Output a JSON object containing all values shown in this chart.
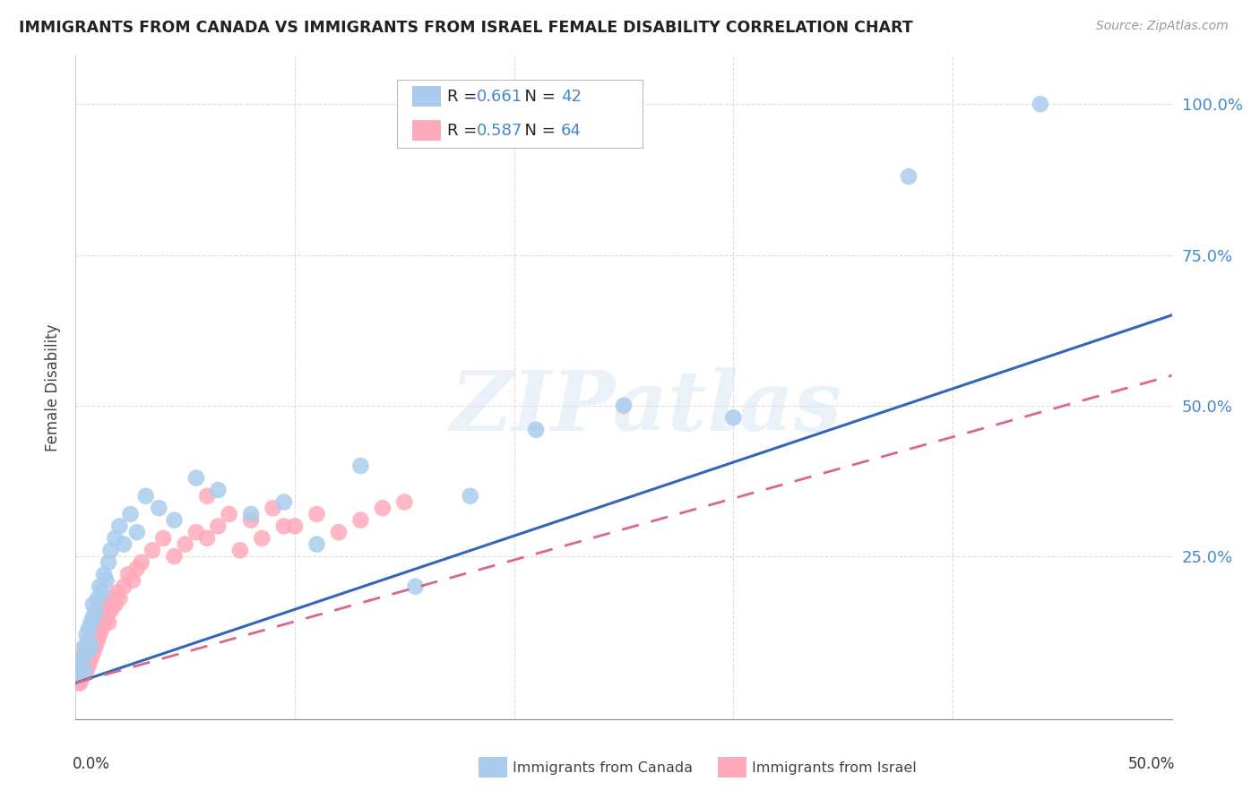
{
  "title": "IMMIGRANTS FROM CANADA VS IMMIGRANTS FROM ISRAEL FEMALE DISABILITY CORRELATION CHART",
  "source": "Source: ZipAtlas.com",
  "ylabel": "Female Disability",
  "canada_R": 0.661,
  "canada_N": 42,
  "israel_R": 0.587,
  "israel_N": 64,
  "xlim": [
    0,
    0.5
  ],
  "ylim": [
    -0.02,
    1.08
  ],
  "canada_color": "#aaccee",
  "canada_line_color": "#3366bb",
  "israel_color": "#ffaabb",
  "israel_line_color": "#dd6688",
  "background_color": "#ffffff",
  "watermark_text": "ZIPatlas",
  "canada_x": [
    0.001,
    0.002,
    0.003,
    0.004,
    0.004,
    0.005,
    0.005,
    0.006,
    0.006,
    0.007,
    0.007,
    0.008,
    0.008,
    0.009,
    0.01,
    0.011,
    0.012,
    0.013,
    0.014,
    0.015,
    0.016,
    0.018,
    0.02,
    0.022,
    0.025,
    0.028,
    0.032,
    0.038,
    0.045,
    0.055,
    0.065,
    0.08,
    0.095,
    0.11,
    0.13,
    0.155,
    0.18,
    0.21,
    0.25,
    0.3,
    0.38,
    0.44
  ],
  "canada_y": [
    0.05,
    0.07,
    0.08,
    0.1,
    0.06,
    0.09,
    0.12,
    0.11,
    0.13,
    0.14,
    0.1,
    0.15,
    0.17,
    0.16,
    0.18,
    0.2,
    0.19,
    0.22,
    0.21,
    0.24,
    0.26,
    0.28,
    0.3,
    0.27,
    0.32,
    0.29,
    0.35,
    0.33,
    0.31,
    0.38,
    0.36,
    0.32,
    0.34,
    0.27,
    0.4,
    0.2,
    0.35,
    0.46,
    0.5,
    0.48,
    0.88,
    1.0
  ],
  "israel_x": [
    0.001,
    0.001,
    0.002,
    0.002,
    0.002,
    0.003,
    0.003,
    0.003,
    0.004,
    0.004,
    0.004,
    0.005,
    0.005,
    0.005,
    0.006,
    0.006,
    0.006,
    0.007,
    0.007,
    0.008,
    0.008,
    0.008,
    0.009,
    0.009,
    0.01,
    0.01,
    0.011,
    0.012,
    0.012,
    0.013,
    0.013,
    0.014,
    0.015,
    0.015,
    0.016,
    0.017,
    0.018,
    0.019,
    0.02,
    0.022,
    0.024,
    0.026,
    0.028,
    0.03,
    0.035,
    0.04,
    0.045,
    0.05,
    0.055,
    0.06,
    0.065,
    0.07,
    0.08,
    0.09,
    0.1,
    0.11,
    0.12,
    0.13,
    0.14,
    0.15,
    0.06,
    0.075,
    0.085,
    0.095
  ],
  "israel_y": [
    0.04,
    0.05,
    0.04,
    0.06,
    0.07,
    0.05,
    0.06,
    0.08,
    0.06,
    0.07,
    0.09,
    0.06,
    0.08,
    0.1,
    0.07,
    0.09,
    0.11,
    0.08,
    0.1,
    0.09,
    0.11,
    0.12,
    0.1,
    0.12,
    0.11,
    0.13,
    0.12,
    0.13,
    0.15,
    0.14,
    0.16,
    0.15,
    0.14,
    0.17,
    0.16,
    0.18,
    0.17,
    0.19,
    0.18,
    0.2,
    0.22,
    0.21,
    0.23,
    0.24,
    0.26,
    0.28,
    0.25,
    0.27,
    0.29,
    0.28,
    0.3,
    0.32,
    0.31,
    0.33,
    0.3,
    0.32,
    0.29,
    0.31,
    0.33,
    0.34,
    0.35,
    0.26,
    0.28,
    0.3
  ],
  "canada_line_x0": 0.0,
  "canada_line_y0": 0.04,
  "canada_line_x1": 0.5,
  "canada_line_y1": 0.65,
  "israel_line_x0": 0.0,
  "israel_line_y0": 0.04,
  "israel_line_x1": 0.5,
  "israel_line_y1": 0.55
}
